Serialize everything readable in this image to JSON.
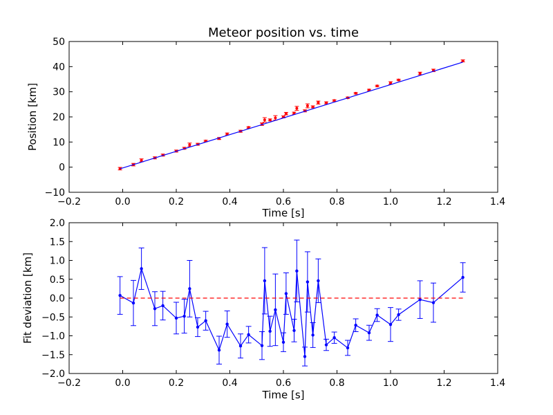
{
  "chart_data": [
    {
      "type": "scatter",
      "title": "Meteor position vs. time",
      "xlabel": "Time [s]",
      "ylabel": "Position [km]",
      "xlim": [
        -0.2,
        1.4
      ],
      "ylim": [
        -10,
        50
      ],
      "xticks": [
        "−0.2",
        "0.0",
        "0.2",
        "0.4",
        "0.6",
        "0.8",
        "1.0",
        "1.2",
        "1.4"
      ],
      "yticks": [
        "−10",
        "0",
        "10",
        "20",
        "30",
        "40",
        "50"
      ],
      "grid": false,
      "colors": {
        "points": "#ff0000",
        "fit": "#0000ff"
      },
      "series": [
        {
          "style": "points-with-errorbars",
          "x": [
            -0.01,
            0.04,
            0.07,
            0.12,
            0.15,
            0.2,
            0.23,
            0.25,
            0.28,
            0.31,
            0.36,
            0.39,
            0.44,
            0.47,
            0.52,
            0.53,
            0.55,
            0.57,
            0.6,
            0.61,
            0.64,
            0.65,
            0.68,
            0.69,
            0.71,
            0.73,
            0.76,
            0.79,
            0.84,
            0.87,
            0.92,
            0.95,
            1.0,
            1.03,
            1.11,
            1.16,
            1.27
          ],
          "y": [
            -0.6,
            1.0,
            2.7,
            3.7,
            4.8,
            6.4,
            7.5,
            8.9,
            9.1,
            10.4,
            11.4,
            13.2,
            14.3,
            15.8,
            17.1,
            18.8,
            18.8,
            19.6,
            20.0,
            21.3,
            21.5,
            23.4,
            22.4,
            24.4,
            24.0,
            25.7,
            25.6,
            26.5,
            27.6,
            29.4,
            30.7,
            32.3,
            33.5,
            34.7,
            37.3,
            38.5,
            42.3
          ],
          "err": [
            0.5,
            0.5,
            0.6,
            0.4,
            0.4,
            0.4,
            0.4,
            0.7,
            0.4,
            0.3,
            0.4,
            0.4,
            0.4,
            0.3,
            0.5,
            0.9,
            0.4,
            0.9,
            0.4,
            0.5,
            0.4,
            0.8,
            0.4,
            0.8,
            0.4,
            0.6,
            0.4,
            0.3,
            0.3,
            0.3,
            0.3,
            0.3,
            0.5,
            0.3,
            0.5,
            0.5,
            0.4
          ]
        },
        {
          "style": "fit-line",
          "x": [
            -0.01,
            1.27
          ],
          "y": [
            -0.65,
            41.8
          ]
        }
      ]
    },
    {
      "type": "line",
      "xlabel": "Time [s]",
      "ylabel": "Fit deviation [km]",
      "xlim": [
        -0.2,
        1.4
      ],
      "ylim": [
        -2.0,
        2.0
      ],
      "xticks": [
        "−0.2",
        "0.0",
        "0.2",
        "0.4",
        "0.6",
        "0.8",
        "1.0",
        "1.2",
        "1.4"
      ],
      "yticks": [
        "−2.0",
        "−1.5",
        "−1.0",
        "−0.5",
        "0.0",
        "0.5",
        "1.0",
        "1.5",
        "2.0"
      ],
      "grid": false,
      "colors": {
        "residuals": "#0000ff",
        "zero_line": "#ff0000"
      },
      "series": [
        {
          "style": "line-with-errorbars",
          "x": [
            -0.01,
            0.04,
            0.07,
            0.12,
            0.15,
            0.2,
            0.23,
            0.25,
            0.28,
            0.31,
            0.36,
            0.39,
            0.44,
            0.47,
            0.52,
            0.53,
            0.55,
            0.57,
            0.6,
            0.61,
            0.64,
            0.65,
            0.68,
            0.69,
            0.71,
            0.73,
            0.76,
            0.79,
            0.84,
            0.87,
            0.92,
            0.95,
            1.0,
            1.03,
            1.11,
            1.16,
            1.27
          ],
          "y": [
            0.07,
            -0.13,
            0.78,
            -0.28,
            -0.2,
            -0.53,
            -0.48,
            0.25,
            -0.77,
            -0.6,
            -1.38,
            -0.69,
            -1.27,
            -0.97,
            -1.26,
            0.46,
            -0.88,
            -0.31,
            -1.17,
            0.12,
            -0.86,
            0.72,
            -1.55,
            0.43,
            -0.98,
            0.46,
            -1.24,
            -1.05,
            -1.32,
            -0.72,
            -0.92,
            -0.45,
            -0.7,
            -0.44,
            -0.04,
            -0.12,
            0.55
          ],
          "err": [
            0.5,
            0.6,
            0.55,
            0.45,
            0.38,
            0.42,
            0.45,
            0.75,
            0.25,
            0.25,
            0.37,
            0.35,
            0.32,
            0.22,
            0.37,
            0.88,
            0.4,
            0.95,
            0.25,
            0.55,
            0.3,
            0.82,
            0.25,
            0.8,
            0.33,
            0.58,
            0.15,
            0.15,
            0.2,
            0.17,
            0.2,
            0.17,
            0.45,
            0.15,
            0.5,
            0.52,
            0.39
          ]
        },
        {
          "style": "dashed-zero",
          "x": [
            -0.01,
            1.27
          ],
          "y": [
            0,
            0
          ]
        }
      ]
    }
  ]
}
